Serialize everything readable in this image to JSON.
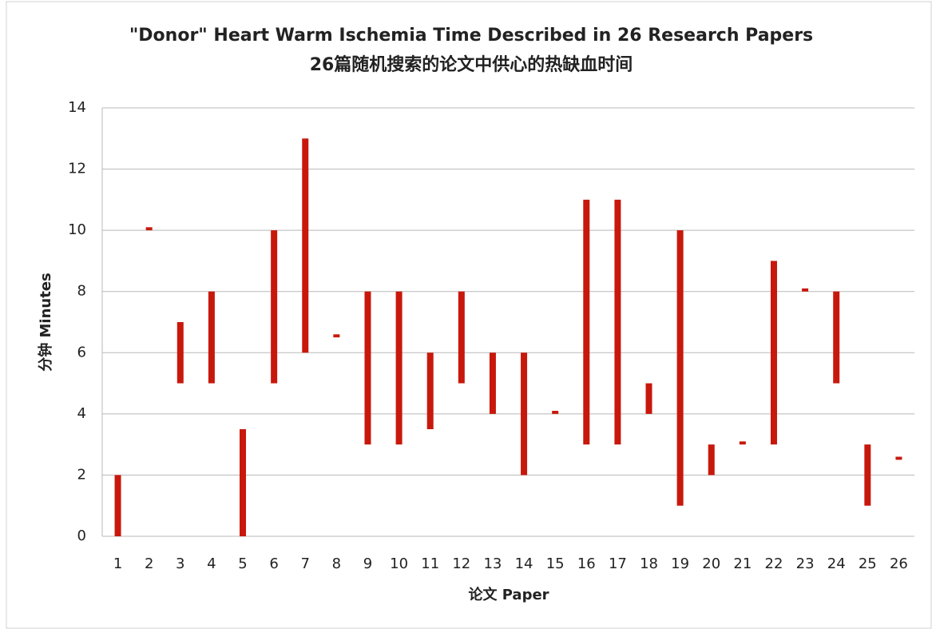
{
  "chart_data": {
    "type": "range_bar",
    "title": "\"Donor\" Heart Warm Ischemia Time Described in 26 Research Papers",
    "subtitle": "26篇随机搜索的论文中供心的热缺血时间",
    "x_label": "论文 Paper",
    "y_label": "分钟 Minutes",
    "categories": [
      "1",
      "2",
      "3",
      "4",
      "5",
      "6",
      "7",
      "8",
      "9",
      "10",
      "11",
      "12",
      "13",
      "14",
      "15",
      "16",
      "17",
      "18",
      "19",
      "20",
      "21",
      "22",
      "23",
      "24",
      "25",
      "26"
    ],
    "low": [
      0,
      10,
      5,
      5,
      0,
      5,
      6,
      6.5,
      3,
      3,
      3.5,
      5,
      4,
      2,
      4,
      3,
      3,
      4,
      1,
      2,
      3,
      3,
      8,
      5,
      1,
      2.5
    ],
    "high": [
      2,
      10.1,
      7,
      8,
      3.5,
      10,
      13,
      6.6,
      8,
      8,
      6,
      8,
      6,
      6,
      4.1,
      11,
      11,
      5,
      10,
      3,
      3.1,
      9,
      8.1,
      8,
      3,
      2.6
    ],
    "color": "#c8180c",
    "ylim": [
      0,
      14
    ],
    "yticks": [
      0,
      2,
      4,
      6,
      8,
      10,
      12,
      14
    ],
    "grid": true
  }
}
